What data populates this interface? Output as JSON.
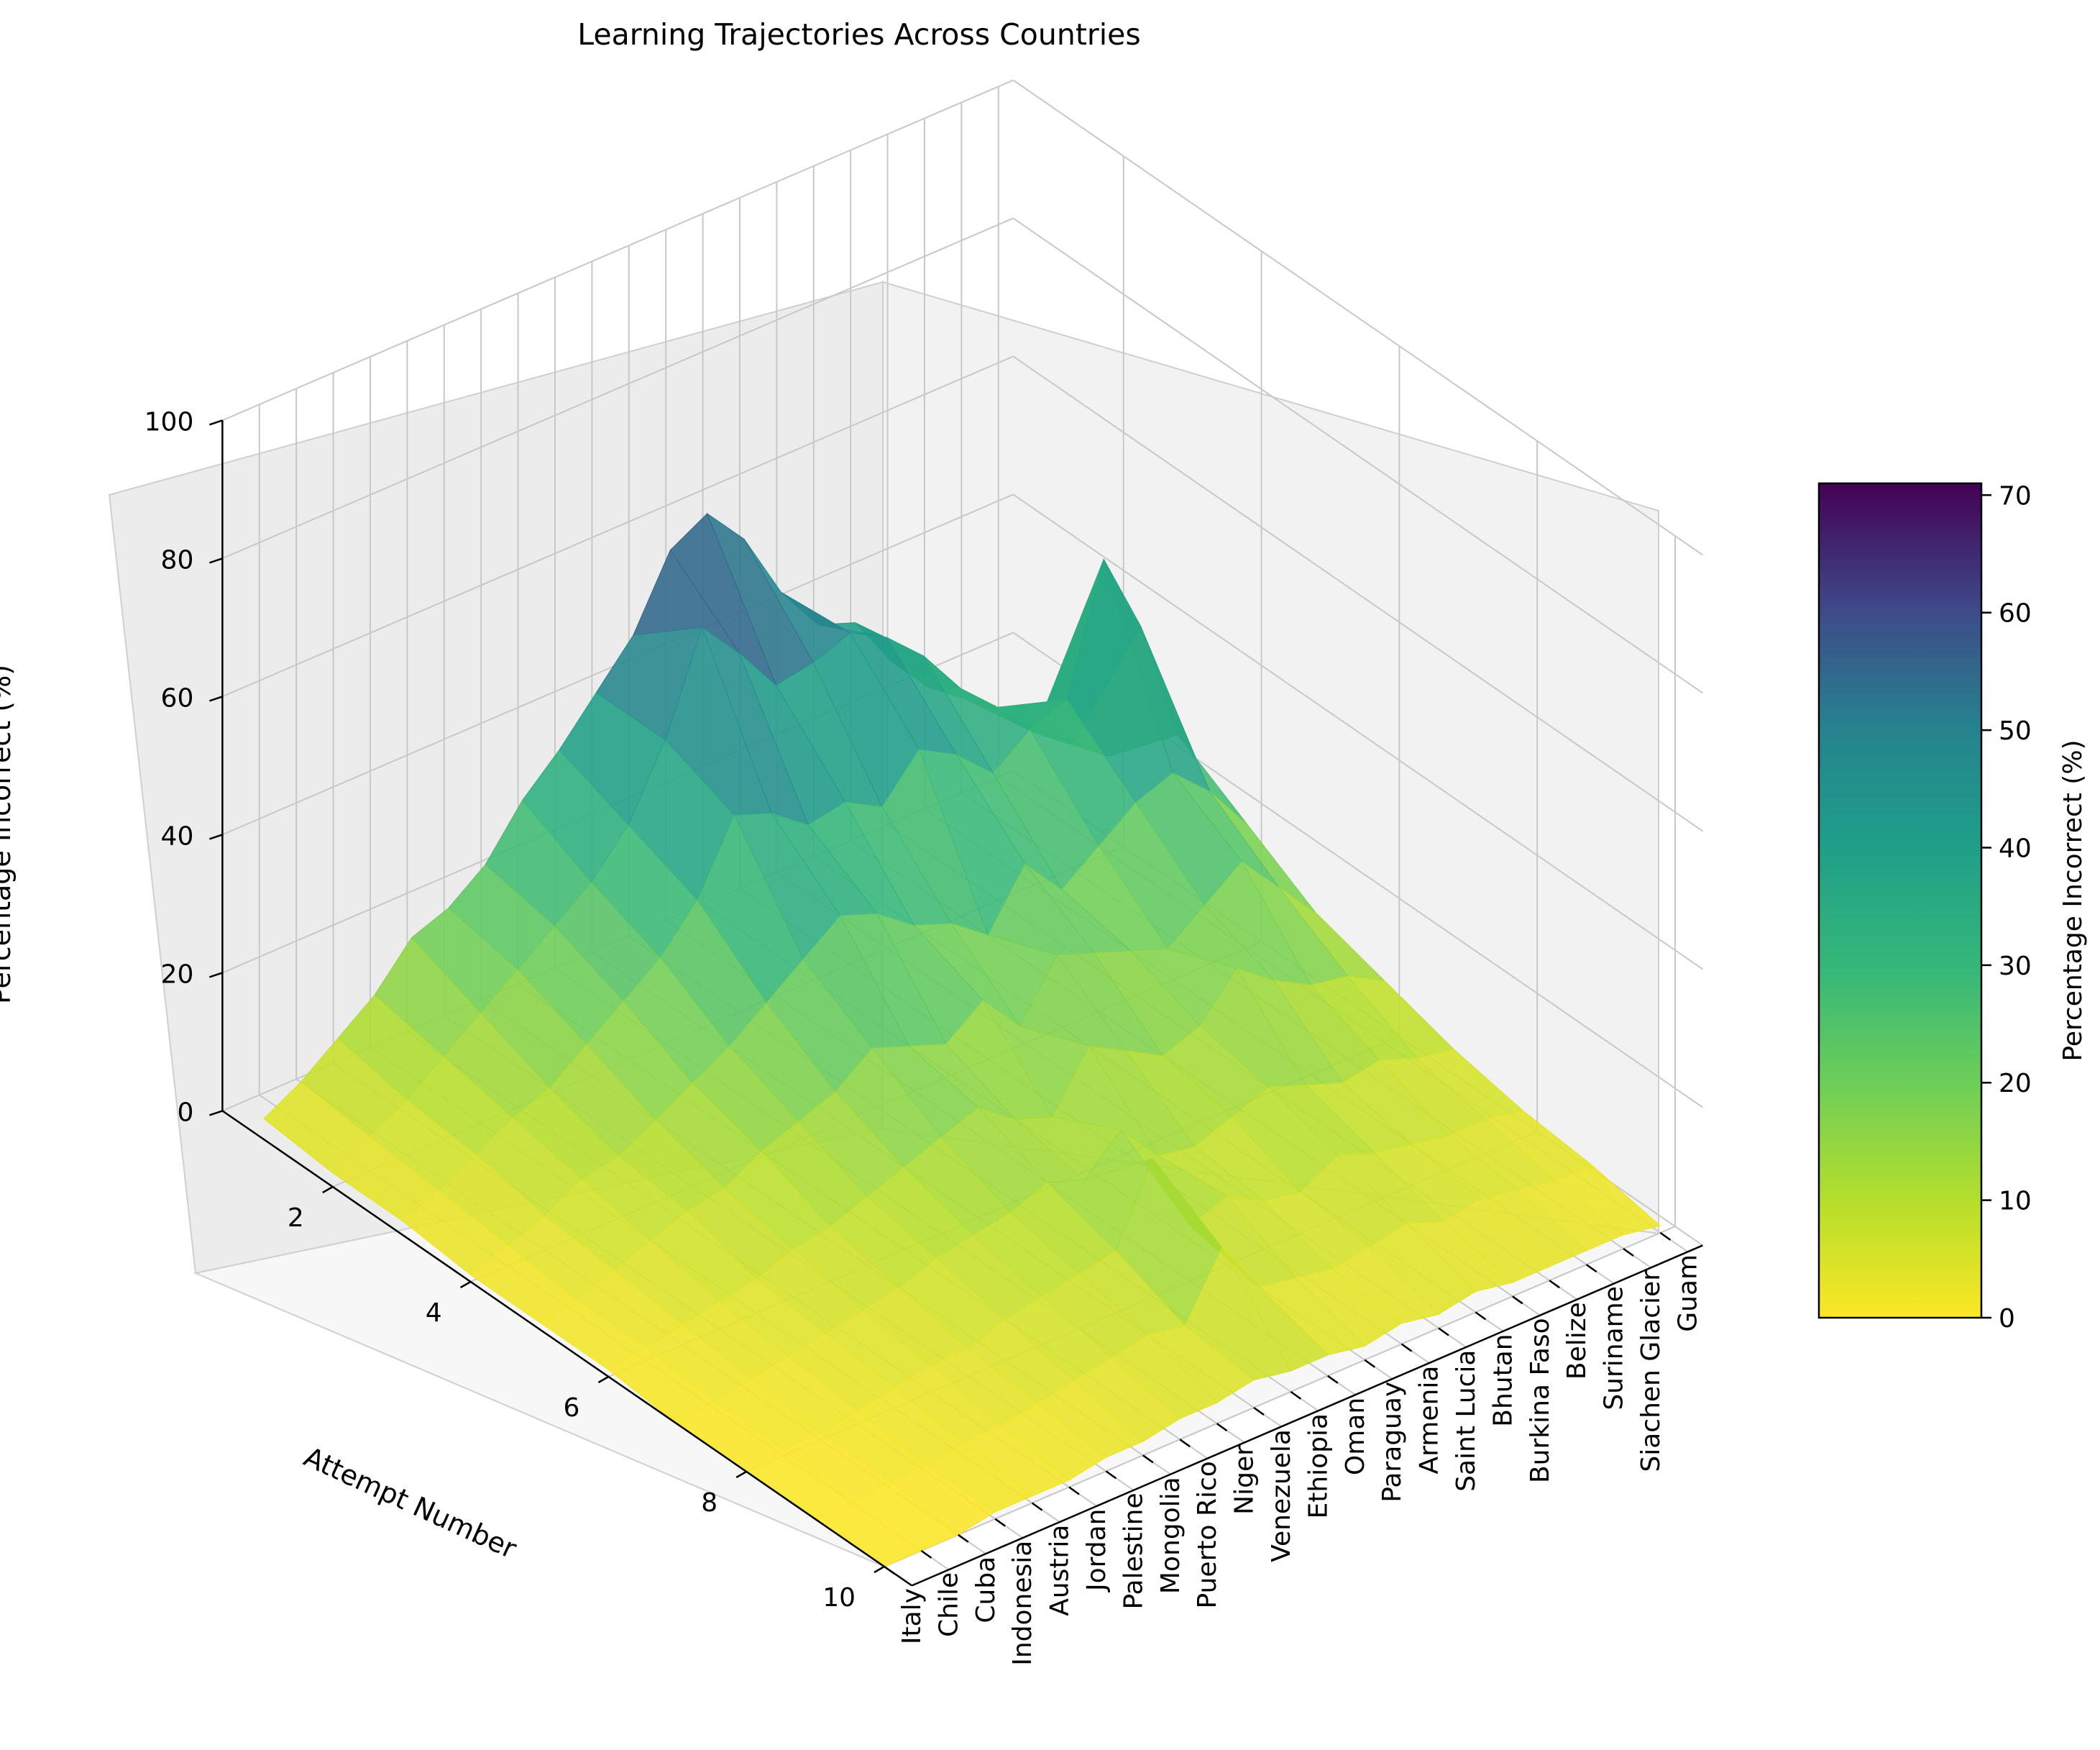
{
  "chart_data": {
    "type": "surface",
    "title": "Learning Trajectories Across Countries",
    "xlabel": "Attempt Number",
    "ylabel": "",
    "zlabel": "Percentage Incorrect (%)",
    "colorbar_label": "Percentage Incorrect (%)",
    "colormap": "viridis (reversed)",
    "x_ticks": [
      2,
      4,
      6,
      8,
      10
    ],
    "z_ticks": [
      0,
      20,
      40,
      60,
      80,
      100
    ],
    "colorbar_ticks": [
      0,
      10,
      20,
      30,
      40,
      50,
      60,
      70
    ],
    "xlim": [
      1,
      10
    ],
    "zlim": [
      0,
      100
    ],
    "clim": [
      0,
      71
    ],
    "grid": true,
    "colorbar_position": "right",
    "countries": [
      "Italy",
      "Chile",
      "Cuba",
      "Indonesia",
      "Austria",
      "Jordan",
      "Palestine",
      "Mongolia",
      "Puerto Rico",
      "Niger",
      "Venezuela",
      "Ethiopia",
      "Oman",
      "Paraguay",
      "Armenia",
      "Saint Lucia",
      "Bhutan",
      "Burkina Faso",
      "Belize",
      "Suriname",
      "Siachen Glacier",
      "Guam"
    ],
    "attempts": [
      1,
      2,
      3,
      4,
      5,
      6,
      7,
      8,
      9,
      10
    ],
    "z_values": [
      [
        3,
        6,
        10,
        14,
        20,
        22,
        26,
        33,
        38,
        44,
        50,
        60,
        63,
        57,
        47,
        40,
        38,
        30,
        24,
        20,
        16,
        12
      ],
      [
        2,
        5,
        8,
        12,
        16,
        20,
        24,
        28,
        34,
        44,
        58,
        52,
        45,
        46,
        48,
        45,
        40,
        33,
        28,
        22,
        18,
        14
      ],
      [
        2,
        4,
        7,
        10,
        12,
        16,
        20,
        24,
        30,
        40,
        38,
        34,
        35,
        32,
        38,
        35,
        30,
        34,
        36,
        54,
        42,
        24
      ],
      [
        1,
        3,
        5,
        8,
        9,
        12,
        15,
        18,
        22,
        26,
        30,
        28,
        24,
        22,
        18,
        26,
        20,
        24,
        28,
        30,
        25,
        18
      ],
      [
        1,
        2,
        4,
        6,
        8,
        9,
        12,
        14,
        16,
        20,
        18,
        16,
        20,
        14,
        22,
        20,
        18,
        16,
        20,
        24,
        18,
        12
      ],
      [
        1,
        2,
        3,
        4,
        5,
        7,
        8,
        10,
        12,
        14,
        16,
        12,
        10,
        18,
        15,
        12,
        14,
        20,
        16,
        13,
        12,
        9
      ],
      [
        0,
        1,
        2,
        3,
        4,
        5,
        6,
        8,
        9,
        10,
        12,
        10,
        15,
        9,
        8,
        10,
        12,
        10,
        8,
        9,
        7,
        6
      ],
      [
        0,
        1,
        1,
        2,
        3,
        4,
        4,
        6,
        7,
        8,
        9,
        20,
        8,
        10,
        7,
        6,
        9,
        7,
        6,
        5,
        5,
        4
      ],
      [
        0,
        0,
        1,
        1,
        2,
        2,
        3,
        4,
        5,
        6,
        5,
        14,
        6,
        5,
        4,
        5,
        6,
        4,
        5,
        4,
        3,
        3
      ],
      [
        0,
        0,
        0,
        1,
        1,
        1,
        2,
        2,
        3,
        3,
        4,
        3,
        3,
        2,
        3,
        2,
        3,
        2,
        2,
        2,
        2,
        1
      ]
    ]
  }
}
